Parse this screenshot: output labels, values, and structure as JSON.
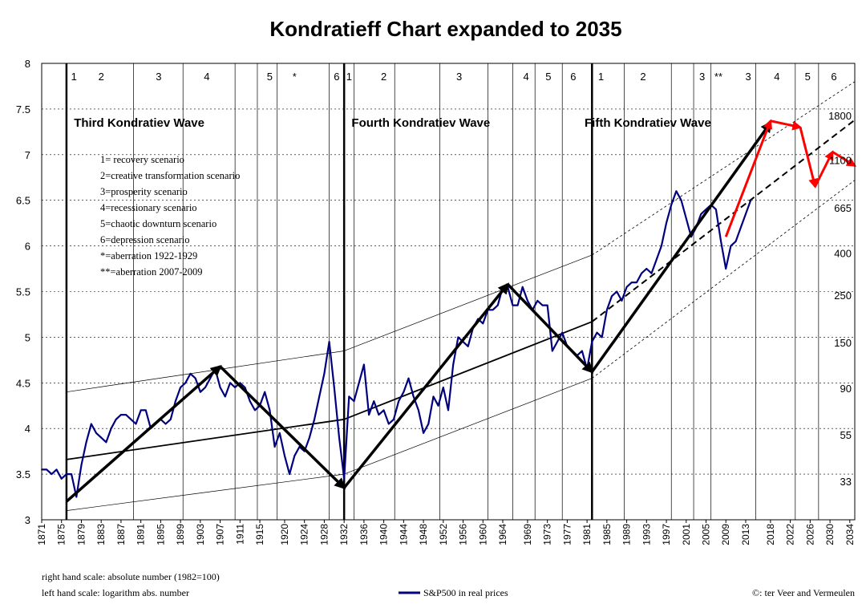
{
  "chart_data": {
    "type": "line",
    "title": "Kondratieff Chart expanded to 2035",
    "ylim": [
      3,
      8
    ],
    "y_ticks": [
      "3",
      "3.5",
      "4",
      "4.5",
      "5",
      "5.5",
      "6",
      "6.5",
      "7",
      "7.5",
      "8"
    ],
    "xlim": [
      1871,
      2035
    ],
    "x_ticks": [
      "1871",
      "1875",
      "1879",
      "1883",
      "1887",
      "1891",
      "1895",
      "1899",
      "1903",
      "1907",
      "1911",
      "1915",
      "1920",
      "1924",
      "1928",
      "1932",
      "1936",
      "1940",
      "1944",
      "1948",
      "1952",
      "1956",
      "1960",
      "1964",
      "1969",
      "1973",
      "1977",
      "1981",
      "1985",
      "1989",
      "1993",
      "1997",
      "2001",
      "2005",
      "2009",
      "2013",
      "2018",
      "2022",
      "2026",
      "2030",
      "2034"
    ],
    "grid": "horizontal dashed",
    "wave_labels": [
      {
        "text": "Third Kondratiev Wave",
        "year": 1877.5
      },
      {
        "text": "Fourth Kondratiev Wave",
        "year": 1933.5
      },
      {
        "text": "Fifth Kondratiev Wave",
        "year": 1980.5
      }
    ],
    "scenario_boundaries": [
      1889.5,
      1899.5,
      1910,
      1914.5,
      1918.5,
      1929,
      1934,
      1942.2,
      1951.3,
      1961,
      1966,
      1970.5,
      1976,
      1988.5,
      1998,
      2002.5,
      2006,
      2015,
      2023,
      2027.7
    ],
    "kondratiev_boundaries": [
      1876,
      1932,
      1982
    ],
    "phase_labels": [
      {
        "text": "1",
        "year": 1877.5
      },
      {
        "text": "2",
        "year": 1883
      },
      {
        "text": "3",
        "year": 1894.6
      },
      {
        "text": "4",
        "year": 1904.3
      },
      {
        "text": "5",
        "year": 1917
      },
      {
        "text": "*",
        "year": 1922
      },
      {
        "text": "6",
        "year": 1930.5
      },
      {
        "text": "1",
        "year": 1933
      },
      {
        "text": "2",
        "year": 1940
      },
      {
        "text": "3",
        "year": 1955.2
      },
      {
        "text": "4",
        "year": 1968.7
      },
      {
        "text": "5",
        "year": 1973.2
      },
      {
        "text": "6",
        "year": 1978.2
      },
      {
        "text": "1",
        "year": 1983.8
      },
      {
        "text": "2",
        "year": 1992.3
      },
      {
        "text": "3",
        "year": 2004.2
      },
      {
        "text": "**",
        "year": 2007.5
      },
      {
        "text": "3",
        "year": 2013.5
      },
      {
        "text": "4",
        "year": 2019.3
      },
      {
        "text": "5",
        "year": 2025.5
      },
      {
        "text": "6",
        "year": 2030.8
      }
    ],
    "legend_box": [
      "1= recovery scenario",
      "2=creative transformation scenario",
      "3=prosperity scenario",
      "4=recessionary scenario",
      "5=chaotic downturn scenario",
      "6=depression scenario",
      "*=aberration 1922-1929",
      "**=aberration 2007-2009"
    ],
    "right_scale_labels": [
      {
        "text": "1800",
        "y": 7.43
      },
      {
        "text": "1100",
        "y": 6.94
      },
      {
        "text": "665",
        "y": 6.42
      },
      {
        "text": "400",
        "y": 5.92
      },
      {
        "text": "250",
        "y": 5.46
      },
      {
        "text": "150",
        "y": 4.94
      },
      {
        "text": "90",
        "y": 4.44
      },
      {
        "text": "55",
        "y": 3.93
      },
      {
        "text": "33",
        "y": 3.42
      }
    ],
    "series": [
      {
        "name": "S&P500 in real prices",
        "color": "#00007f",
        "x": [
          1871,
          1872,
          1873,
          1874,
          1875,
          1876,
          1877,
          1878,
          1879,
          1880,
          1881,
          1882,
          1883,
          1884,
          1885,
          1886,
          1887,
          1888,
          1889,
          1890,
          1891,
          1892,
          1893,
          1894,
          1895,
          1896,
          1897,
          1898,
          1899,
          1900,
          1901,
          1902,
          1903,
          1904,
          1905,
          1906,
          1907,
          1908,
          1909,
          1910,
          1911,
          1912,
          1913,
          1914,
          1915,
          1916,
          1917,
          1918,
          1919,
          1920,
          1921,
          1922,
          1923,
          1924,
          1925,
          1926,
          1927,
          1928,
          1929,
          1930,
          1931,
          1932,
          1933,
          1934,
          1935,
          1936,
          1937,
          1938,
          1939,
          1940,
          1941,
          1942,
          1943,
          1944,
          1945,
          1946,
          1947,
          1948,
          1949,
          1950,
          1951,
          1952,
          1953,
          1954,
          1955,
          1956,
          1957,
          1958,
          1959,
          1960,
          1961,
          1962,
          1963,
          1964,
          1965,
          1966,
          1967,
          1968,
          1969,
          1970,
          1971,
          1972,
          1973,
          1974,
          1975,
          1976,
          1977,
          1978,
          1979,
          1980,
          1981,
          1982,
          1983,
          1984,
          1985,
          1986,
          1987,
          1988,
          1989,
          1990,
          1991,
          1992,
          1993,
          1994,
          1995,
          1996,
          1997,
          1998,
          1999,
          2000,
          2001,
          2002,
          2003,
          2004,
          2005,
          2006,
          2007,
          2008,
          2009,
          2010,
          2011,
          2012,
          2013,
          2014
        ],
        "y": [
          3.55,
          3.55,
          3.5,
          3.55,
          3.45,
          3.5,
          3.5,
          3.25,
          3.6,
          3.85,
          4.05,
          3.95,
          3.9,
          3.85,
          4.0,
          4.1,
          4.15,
          4.15,
          4.1,
          4.05,
          4.2,
          4.2,
          4.0,
          4.05,
          4.1,
          4.05,
          4.1,
          4.3,
          4.45,
          4.5,
          4.6,
          4.55,
          4.4,
          4.45,
          4.55,
          4.65,
          4.45,
          4.35,
          4.5,
          4.45,
          4.5,
          4.45,
          4.3,
          4.2,
          4.25,
          4.4,
          4.2,
          3.8,
          3.95,
          3.7,
          3.5,
          3.7,
          3.8,
          3.75,
          3.9,
          4.1,
          4.35,
          4.6,
          4.95,
          4.45,
          3.9,
          3.45,
          4.35,
          4.3,
          4.5,
          4.7,
          4.15,
          4.3,
          4.15,
          4.2,
          4.05,
          4.1,
          4.3,
          4.4,
          4.55,
          4.35,
          4.2,
          3.95,
          4.05,
          4.35,
          4.25,
          4.45,
          4.2,
          4.7,
          5.0,
          4.95,
          4.9,
          5.1,
          5.2,
          5.15,
          5.3,
          5.3,
          5.35,
          5.55,
          5.55,
          5.35,
          5.35,
          5.55,
          5.4,
          5.3,
          5.4,
          5.35,
          5.35,
          4.85,
          4.95,
          5.05,
          4.9,
          4.85,
          4.8,
          4.85,
          4.65,
          4.95,
          5.05,
          5.0,
          5.3,
          5.45,
          5.5,
          5.4,
          5.55,
          5.6,
          5.6,
          5.7,
          5.75,
          5.7,
          5.85,
          6.0,
          6.25,
          6.45,
          6.6,
          6.5,
          6.3,
          6.1,
          6.2,
          6.35,
          6.4,
          6.45,
          6.4,
          6.05,
          5.75,
          6.0,
          6.05,
          6.2,
          6.35,
          6.5
        ]
      }
    ],
    "trend_lines": [
      {
        "name": "third-wave-channel-top",
        "style": "thin",
        "points": [
          [
            1876,
            4.4
          ],
          [
            1932,
            4.85
          ]
        ]
      },
      {
        "name": "third-wave-channel-bottom",
        "style": "thin",
        "points": [
          [
            1876,
            3.1
          ],
          [
            1932,
            3.5
          ]
        ]
      },
      {
        "name": "third-wave-midline",
        "style": "medium",
        "points": [
          [
            1876,
            3.66
          ],
          [
            1932,
            4.1
          ]
        ]
      },
      {
        "name": "fourth-wave-channel-top",
        "style": "thin",
        "points": [
          [
            1932,
            4.85
          ],
          [
            1982,
            5.9
          ]
        ]
      },
      {
        "name": "fourth-wave-channel-bottom",
        "style": "thin",
        "points": [
          [
            1932,
            3.5
          ],
          [
            1982,
            4.55
          ]
        ]
      },
      {
        "name": "fourth-wave-midline",
        "style": "medium",
        "points": [
          [
            1932,
            4.1
          ],
          [
            1982,
            5.17
          ]
        ]
      },
      {
        "name": "fifth-wave-channel-top",
        "style": "thin-dotted",
        "points": [
          [
            1982,
            5.9
          ],
          [
            2035,
            7.8
          ]
        ]
      },
      {
        "name": "fifth-wave-channel-bottom",
        "style": "thin-dotted",
        "points": [
          [
            1982,
            4.55
          ],
          [
            2035,
            6.72
          ]
        ]
      },
      {
        "name": "fifth-wave-midline",
        "style": "dashed",
        "points": [
          [
            1982,
            5.17
          ],
          [
            2035,
            7.38
          ]
        ]
      }
    ],
    "wave_arrows": [
      {
        "name": "third-wave-up",
        "points": [
          [
            1876,
            3.2
          ],
          [
            1907,
            4.68
          ]
        ]
      },
      {
        "name": "third-wave-down",
        "points": [
          [
            1907,
            4.68
          ],
          [
            1932,
            3.35
          ]
        ]
      },
      {
        "name": "fourth-wave-up",
        "points": [
          [
            1932,
            3.35
          ],
          [
            1965,
            5.58
          ]
        ]
      },
      {
        "name": "fourth-wave-down",
        "points": [
          [
            1965,
            5.58
          ],
          [
            1982,
            4.62
          ]
        ]
      },
      {
        "name": "fifth-wave-up",
        "points": [
          [
            1982,
            4.62
          ],
          [
            2018,
            7.35
          ]
        ]
      }
    ],
    "forecast": {
      "color": "#ff0000",
      "points": [
        [
          2009,
          6.1
        ],
        [
          2018,
          7.37
        ],
        [
          2024,
          7.3
        ],
        [
          2027,
          6.65
        ],
        [
          2030.5,
          7.03
        ],
        [
          2035,
          6.88
        ]
      ]
    },
    "notes": [
      "right hand scale: absolute number (1982=100)",
      "left hand scale: logarithm abs. number"
    ],
    "legend": {
      "label": "S&P500 in real prices",
      "placement": "bottom-center"
    },
    "credit": "©: ter Veer and Vermeulen"
  }
}
